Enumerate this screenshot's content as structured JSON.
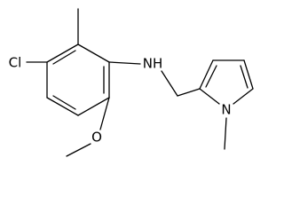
{
  "atoms": [
    {
      "label": "Cl"
    },
    {
      "label": "NH"
    },
    {
      "label": "O"
    },
    {
      "label": "N"
    }
  ]
}
